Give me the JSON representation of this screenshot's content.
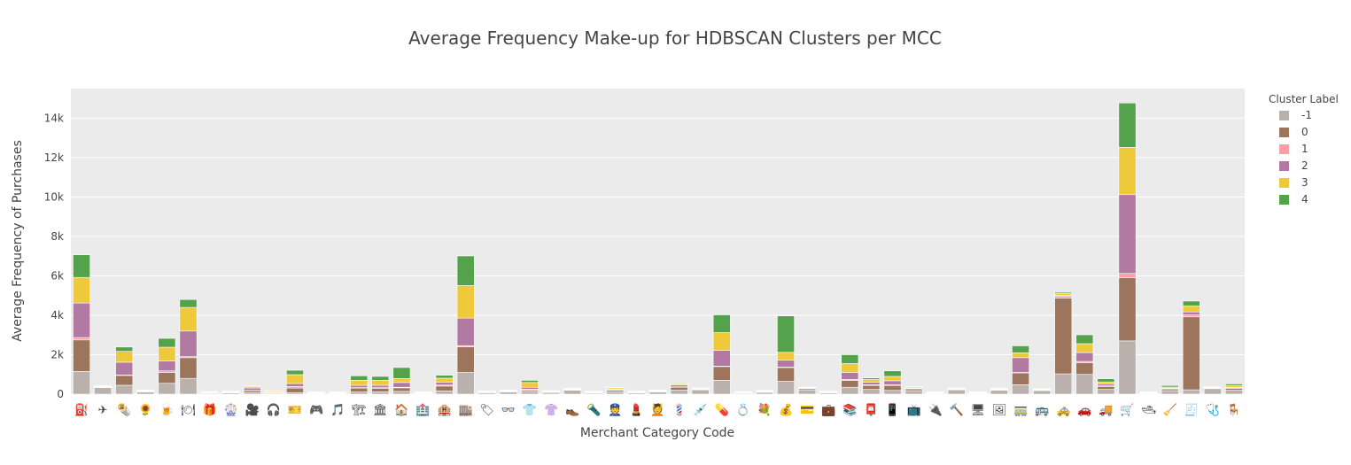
{
  "chart_data": {
    "type": "bar",
    "barmode": "stack",
    "title": "Average Frequency Make-up for HDBSCAN Clusters per MCC",
    "xlabel": "Merchant Category Code",
    "ylabel": "Average Frequency of Purchases",
    "ylim": [
      0,
      15500
    ],
    "yticks": [
      0,
      2000,
      4000,
      6000,
      8000,
      10000,
      12000,
      14000
    ],
    "ytick_labels": [
      "0",
      "2k",
      "4k",
      "6k",
      "8k",
      "10k",
      "12k",
      "14k"
    ],
    "grid": true,
    "legend": {
      "title": "Cluster Label",
      "placement": "right"
    },
    "categories": [
      "⛽",
      "✈",
      "🌯",
      "🌻",
      "🍺",
      "🍽",
      "🎁",
      "🎡",
      "🎥",
      "🎧",
      "🎫",
      "🎮",
      "🎵",
      "🏗",
      "🏛",
      "🏠",
      "🏥",
      "🏨",
      "🏬",
      "🏷",
      "👓",
      "👕",
      "👚",
      "👞",
      "🔦",
      "👮",
      "💄",
      "💆",
      "💈",
      "💉",
      "💊",
      "💍",
      "💐",
      "💰",
      "💳",
      "💼",
      "📚",
      "📮",
      "📱",
      "📺",
      "🔌",
      "🔨",
      "🖥",
      "🖼",
      "🚃",
      "🚌",
      "🚕",
      "🚗",
      "🚚",
      "🛒",
      "🛥",
      "🧹",
      "🧾",
      "🩺",
      "🪑"
    ],
    "series": [
      {
        "name": "-1",
        "color": "#bab0ac",
        "values": [
          1150,
          330,
          450,
          110,
          550,
          800,
          40,
          60,
          80,
          40,
          80,
          20,
          20,
          110,
          120,
          140,
          20,
          160,
          1100,
          70,
          110,
          130,
          80,
          200,
          50,
          120,
          60,
          110,
          200,
          220,
          700,
          40,
          90,
          650,
          220,
          60,
          350,
          240,
          190,
          180,
          20,
          220,
          20,
          200,
          480,
          180,
          1030,
          1000,
          240,
          2700,
          20,
          180,
          220,
          280,
          200
        ]
      },
      {
        "name": "0",
        "color": "#9d755d",
        "values": [
          1600,
          20,
          500,
          20,
          550,
          1050,
          20,
          20,
          90,
          20,
          230,
          20,
          20,
          200,
          180,
          180,
          20,
          250,
          1300,
          20,
          20,
          60,
          20,
          20,
          20,
          80,
          20,
          20,
          150,
          20,
          700,
          20,
          20,
          700,
          60,
          20,
          350,
          200,
          250,
          90,
          20,
          20,
          20,
          20,
          600,
          20,
          3850,
          600,
          150,
          3200,
          20,
          80,
          3700,
          20,
          100
        ]
      },
      {
        "name": "1",
        "color": "#ff9da6",
        "values": [
          120,
          20,
          20,
          20,
          80,
          50,
          20,
          20,
          20,
          20,
          80,
          20,
          20,
          20,
          30,
          30,
          20,
          50,
          60,
          20,
          20,
          60,
          20,
          20,
          20,
          20,
          20,
          20,
          20,
          20,
          20,
          20,
          20,
          20,
          20,
          20,
          50,
          40,
          40,
          20,
          20,
          20,
          20,
          20,
          20,
          20,
          80,
          60,
          30,
          220,
          20,
          20,
          100,
          20,
          20
        ]
      },
      {
        "name": "2",
        "color": "#b279a2",
        "values": [
          1750,
          20,
          650,
          20,
          500,
          1300,
          20,
          20,
          120,
          20,
          150,
          20,
          20,
          120,
          120,
          240,
          20,
          150,
          1400,
          20,
          20,
          100,
          20,
          20,
          20,
          20,
          20,
          20,
          90,
          20,
          800,
          20,
          20,
          350,
          20,
          20,
          350,
          120,
          200,
          20,
          20,
          20,
          20,
          20,
          750,
          20,
          50,
          450,
          100,
          4000,
          20,
          20,
          150,
          20,
          20
        ]
      },
      {
        "name": "3",
        "color": "#eeca3b",
        "values": [
          1300,
          20,
          550,
          20,
          700,
          1200,
          20,
          20,
          80,
          50,
          450,
          20,
          20,
          250,
          250,
          200,
          20,
          200,
          1650,
          20,
          20,
          240,
          20,
          20,
          20,
          80,
          20,
          20,
          60,
          20,
          900,
          20,
          20,
          400,
          20,
          20,
          450,
          140,
          220,
          50,
          20,
          20,
          20,
          20,
          250,
          20,
          100,
          450,
          100,
          2400,
          20,
          60,
          300,
          20,
          100
        ]
      },
      {
        "name": "4",
        "color": "#54a24b",
        "values": [
          1150,
          20,
          220,
          20,
          450,
          400,
          20,
          20,
          20,
          20,
          220,
          20,
          20,
          230,
          200,
          560,
          20,
          150,
          1500,
          20,
          20,
          110,
          20,
          20,
          20,
          20,
          20,
          20,
          40,
          20,
          900,
          20,
          20,
          1850,
          20,
          20,
          450,
          80,
          280,
          20,
          20,
          20,
          20,
          20,
          350,
          20,
          60,
          450,
          160,
          2250,
          20,
          80,
          250,
          20,
          80
        ]
      }
    ]
  }
}
